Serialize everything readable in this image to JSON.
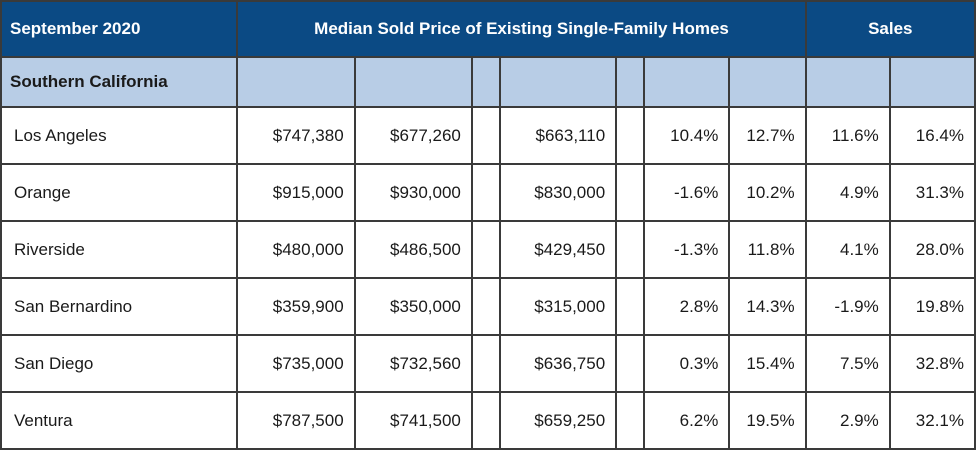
{
  "header": {
    "period": "September 2020",
    "price_group": "Median Sold Price of Existing Single-Family Homes",
    "sales_group": "Sales"
  },
  "region": "Southern California",
  "rows": [
    {
      "county": "Los Angeles",
      "values": [
        "$747,380",
        "$677,260",
        "$663,110",
        "10.4%",
        "12.7%",
        "11.6%",
        "16.4%"
      ]
    },
    {
      "county": "Orange",
      "values": [
        "$915,000",
        "$930,000",
        "$830,000",
        "-1.6%",
        "10.2%",
        "4.9%",
        "31.3%"
      ]
    },
    {
      "county": "Riverside",
      "values": [
        "$480,000",
        "$486,500",
        "$429,450",
        "-1.3%",
        "11.8%",
        "4.1%",
        "28.0%"
      ]
    },
    {
      "county": "San Bernardino",
      "values": [
        "$359,900",
        "$350,000",
        "$315,000",
        "2.8%",
        "14.3%",
        "-1.9%",
        "19.8%"
      ]
    },
    {
      "county": "San Diego",
      "values": [
        "$735,000",
        "$732,560",
        "$636,750",
        "0.3%",
        "15.4%",
        "7.5%",
        "32.8%"
      ]
    },
    {
      "county": "Ventura",
      "values": [
        "$787,500",
        "$741,500",
        "$659,250",
        "6.2%",
        "19.5%",
        "2.9%",
        "32.1%"
      ]
    }
  ]
}
